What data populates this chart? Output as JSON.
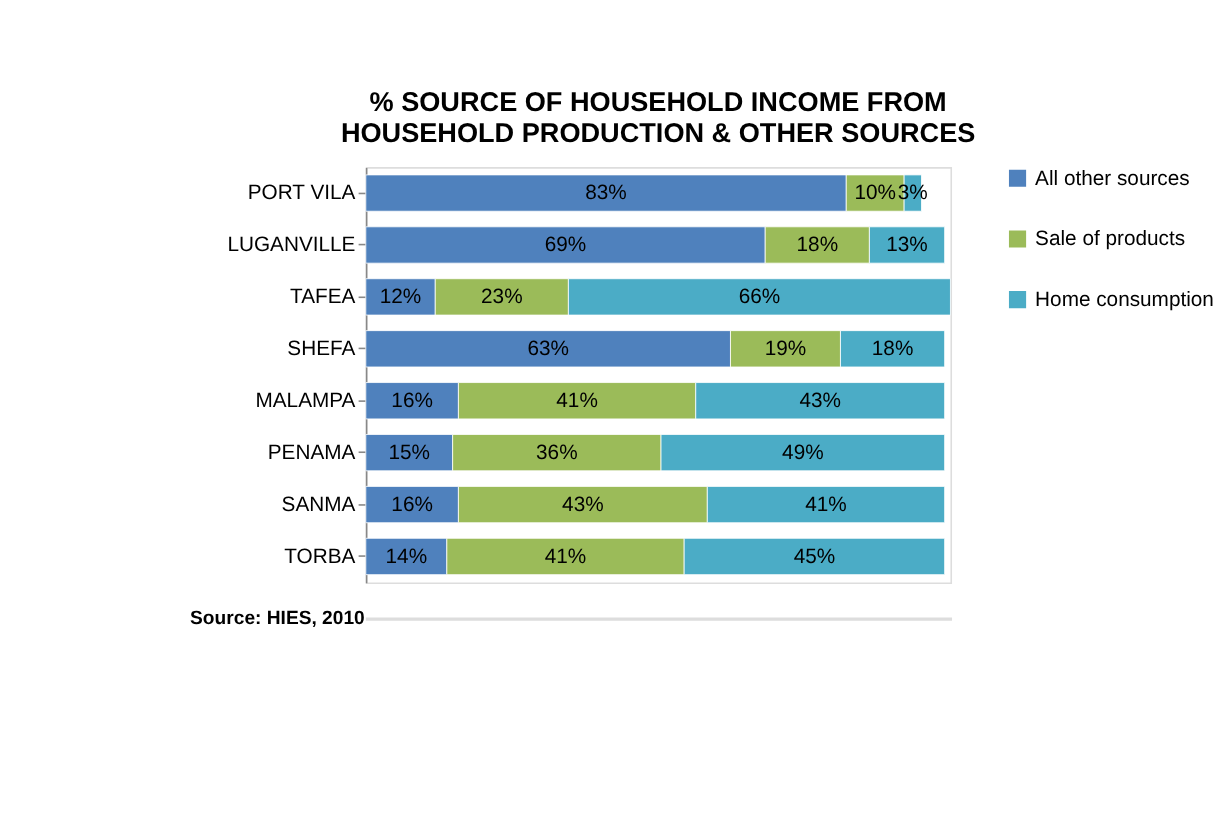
{
  "chart_data": {
    "type": "bar",
    "orientation": "horizontal",
    "stacked": true,
    "title": "% SOURCE OF HOUSEHOLD INCOME FROM HOUSEHOLD PRODUCTION & OTHER SOURCES",
    "categories": [
      "PORT VILA",
      "LUGANVILLE",
      "TAFEA",
      "SHEFA",
      "MALAMPA",
      "PENAMA",
      "SANMA",
      "TORBA"
    ],
    "series": [
      {
        "name": "All other sources",
        "color": "#4f81bd",
        "values": [
          83,
          69,
          12,
          63,
          16,
          15,
          16,
          14
        ],
        "value_labels": [
          "83%",
          "69%",
          "12%",
          "63%",
          "16%",
          "15%",
          "16%",
          "14%"
        ]
      },
      {
        "name": "Sale of products",
        "color": "#9bbb59",
        "values": [
          10,
          18,
          23,
          19,
          41,
          36,
          43,
          41
        ],
        "value_labels": [
          "10%",
          "18%",
          "23%",
          "19%",
          "41%",
          "36%",
          "43%",
          "41%"
        ]
      },
      {
        "name": "Home consumption",
        "color": "#4bacc6",
        "values": [
          3,
          13,
          66,
          18,
          43,
          49,
          41,
          45
        ],
        "value_labels": [
          "3%",
          "13%",
          "66%",
          "18%",
          "43%",
          "49%",
          "41%",
          "45%"
        ]
      }
    ],
    "tick_labels": "y",
    "legend": "right",
    "annotations": [
      "Source: HIES, 2010"
    ]
  }
}
